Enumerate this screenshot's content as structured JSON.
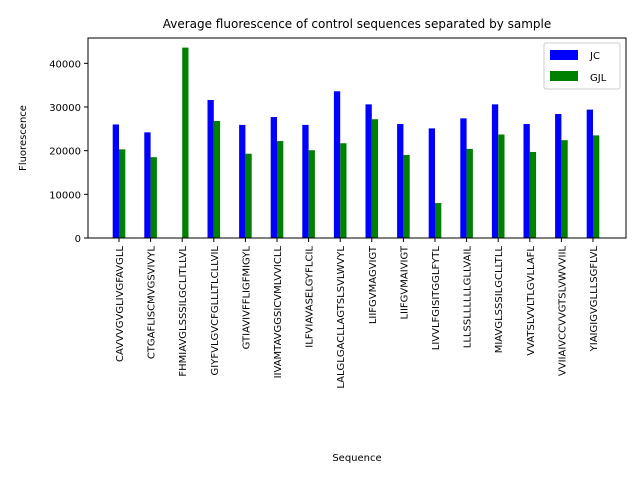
{
  "chart_data": {
    "type": "bar",
    "title": "Average fluorescence of control sequences separated by sample",
    "xlabel": "Sequence",
    "ylabel": "Fluorescence",
    "ylim": [
      0,
      45800
    ],
    "yticks": [
      0,
      10000,
      20000,
      30000,
      40000
    ],
    "legend_position": "top-right",
    "grid": false,
    "categories": [
      "CAVVVGVGLIVGFAVGLL",
      "CTGAFLISCMVGSVIVYL",
      "FHMIAVGLSSSILGCLITLLVL",
      "GIYFVLGVCFGLLLTLCLLVIL",
      "GTIAVIVFFLIGFMIGYL",
      "IIVAMTAVGGSICVMLVVICLL",
      "ILFVIAVASELGYFLCIL",
      "LALGLGACLLAGTSLSVLWVYL",
      "LIIFGVMAGVIGT",
      "LIIFGVMAIVIGT",
      "LIVVLFGISITGGLFYTL",
      "LLLSSLLLLLLGLLVAIL",
      "MIAVGLSSSILGCLLTLL",
      "VVATSLVVLTLGVLLAFL",
      "VVIIAIVCCVVGTSLVWVVIIL",
      "YIAIGIGVGLLLSGFLVL"
    ],
    "series": [
      {
        "name": "JC",
        "color": "#0000ff",
        "values": [
          26000,
          24200,
          0,
          31600,
          25900,
          27700,
          25900,
          33600,
          30600,
          26100,
          25100,
          27400,
          30600,
          26100,
          28400,
          29400
        ]
      },
      {
        "name": "GJL",
        "color": "#008000",
        "values": [
          20300,
          18500,
          43600,
          26800,
          19300,
          22200,
          20100,
          21700,
          27200,
          19000,
          8000,
          20400,
          23700,
          19700,
          22400,
          23500
        ]
      }
    ]
  }
}
